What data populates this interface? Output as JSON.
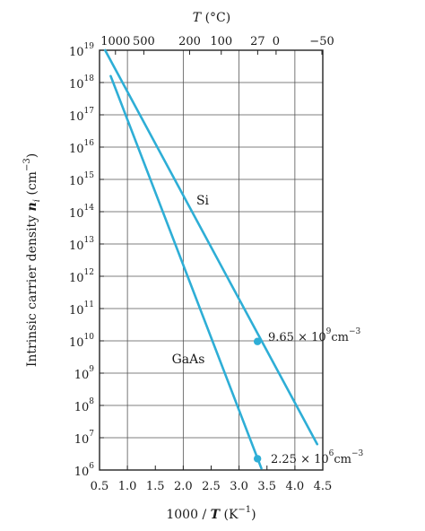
{
  "chart_data": {
    "type": "line",
    "yscale": "log",
    "colors": {
      "line": "#2eaed6",
      "grid": "#555555",
      "frame": "#222222",
      "text": "#1a1a1a"
    },
    "xlim": [
      0.5,
      4.5
    ],
    "ylim_exponent": [
      6,
      19
    ],
    "x_ticks": [
      {
        "value": 0.5,
        "label": "0.5"
      },
      {
        "value": 1.0,
        "label": "1.0"
      },
      {
        "value": 1.5,
        "label": "1.5"
      },
      {
        "value": 2.0,
        "label": "2.0"
      },
      {
        "value": 2.5,
        "label": "2.5"
      },
      {
        "value": 3.0,
        "label": "3.0"
      },
      {
        "value": 3.5,
        "label": "3.5"
      },
      {
        "value": 4.0,
        "label": "4.0"
      },
      {
        "value": 4.5,
        "label": "4.5"
      }
    ],
    "y_ticks": [
      {
        "exp": 19,
        "base": "10",
        "sup": "19"
      },
      {
        "exp": 18,
        "base": "10",
        "sup": "18"
      },
      {
        "exp": 17,
        "base": "10",
        "sup": "17"
      },
      {
        "exp": 16,
        "base": "10",
        "sup": "16"
      },
      {
        "exp": 15,
        "base": "10",
        "sup": "15"
      },
      {
        "exp": 14,
        "base": "10",
        "sup": "14"
      },
      {
        "exp": 13,
        "base": "10",
        "sup": "13"
      },
      {
        "exp": 12,
        "base": "10",
        "sup": "12"
      },
      {
        "exp": 11,
        "base": "10",
        "sup": "11"
      },
      {
        "exp": 10,
        "base": "10",
        "sup": "10"
      },
      {
        "exp": 9,
        "base": "10",
        "sup": "9"
      },
      {
        "exp": 8,
        "base": "10",
        "sup": "8"
      },
      {
        "exp": 7,
        "base": "10",
        "sup": "7"
      },
      {
        "exp": 6,
        "base": "10",
        "sup": "6"
      }
    ],
    "top_ticks": [
      {
        "value": 1000,
        "label": "1000"
      },
      {
        "value": 500,
        "label": "500"
      },
      {
        "value": 200,
        "label": "200"
      },
      {
        "value": 100,
        "label": "100"
      },
      {
        "value": 27,
        "label": "27"
      },
      {
        "value": 0,
        "label": "0"
      },
      {
        "value": -50,
        "label": "−50"
      }
    ],
    "xlabel": {
      "prefix": "1000 / ",
      "var": "T",
      "suffix": " (K",
      "sup": "−1",
      "close": ")"
    },
    "top_label": {
      "var": "T",
      "rest": " (°C)"
    },
    "ylabel": {
      "prefix": "Intrinsic carrier density ",
      "var": "n",
      "sub": "i",
      "suffix": " (cm",
      "sup": "−3",
      "close": ")"
    },
    "series": [
      {
        "name": "Si",
        "points": [
          {
            "x": 0.6,
            "exp": 19.0
          },
          {
            "x": 4.4,
            "exp": 6.8
          }
        ],
        "marker": {
          "x": 3.33,
          "exp": 9.98
        }
      },
      {
        "name": "GaAs",
        "points": [
          {
            "x": 0.7,
            "exp": 18.2
          },
          {
            "x": 3.4,
            "exp": 6.05
          }
        ],
        "marker": {
          "x": 3.33,
          "exp": 6.35
        }
      }
    ],
    "annotations": [
      {
        "series": "Si",
        "mantissa": "9.65 × 10",
        "sup": "9",
        "unit": "cm",
        "unit_sup": "−3"
      },
      {
        "series": "GaAs",
        "mantissa": "2.25 × 10",
        "sup": "6",
        "unit": "cm",
        "unit_sup": "−3"
      }
    ]
  }
}
